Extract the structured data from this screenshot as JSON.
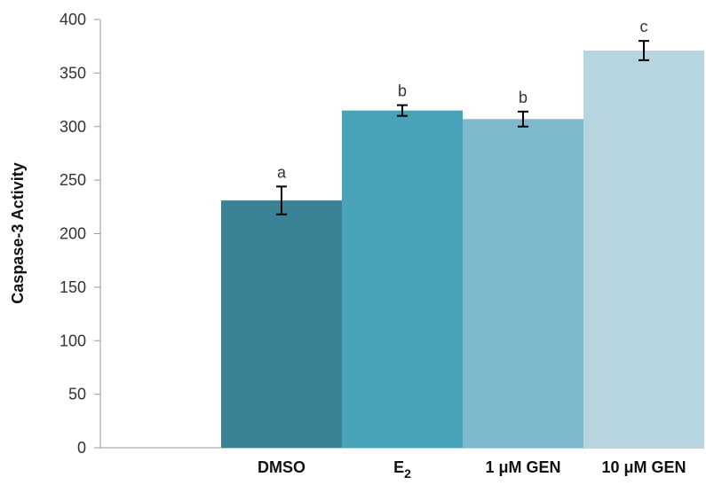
{
  "chart_data": {
    "type": "bar",
    "title": "",
    "xlabel": "",
    "ylabel": "Caspase-3 Activity",
    "ylim": [
      0,
      400
    ],
    "yticks": [
      0,
      50,
      100,
      150,
      200,
      250,
      300,
      350,
      400
    ],
    "grid": false,
    "legend": "none",
    "categories": [
      {
        "main": "DMSO",
        "sub": ""
      },
      {
        "main": "E",
        "sub": "2"
      },
      {
        "main": "1 μM GEN",
        "sub": ""
      },
      {
        "main": "10 μM GEN",
        "sub": ""
      }
    ],
    "values": [
      231,
      315,
      307,
      371
    ],
    "errors": [
      13,
      5,
      7,
      9
    ],
    "significance_labels": [
      "a",
      "b",
      "b",
      "c"
    ],
    "colors": [
      "#3a8296",
      "#48a2b8",
      "#7eb9cd",
      "#b6d5df"
    ]
  }
}
